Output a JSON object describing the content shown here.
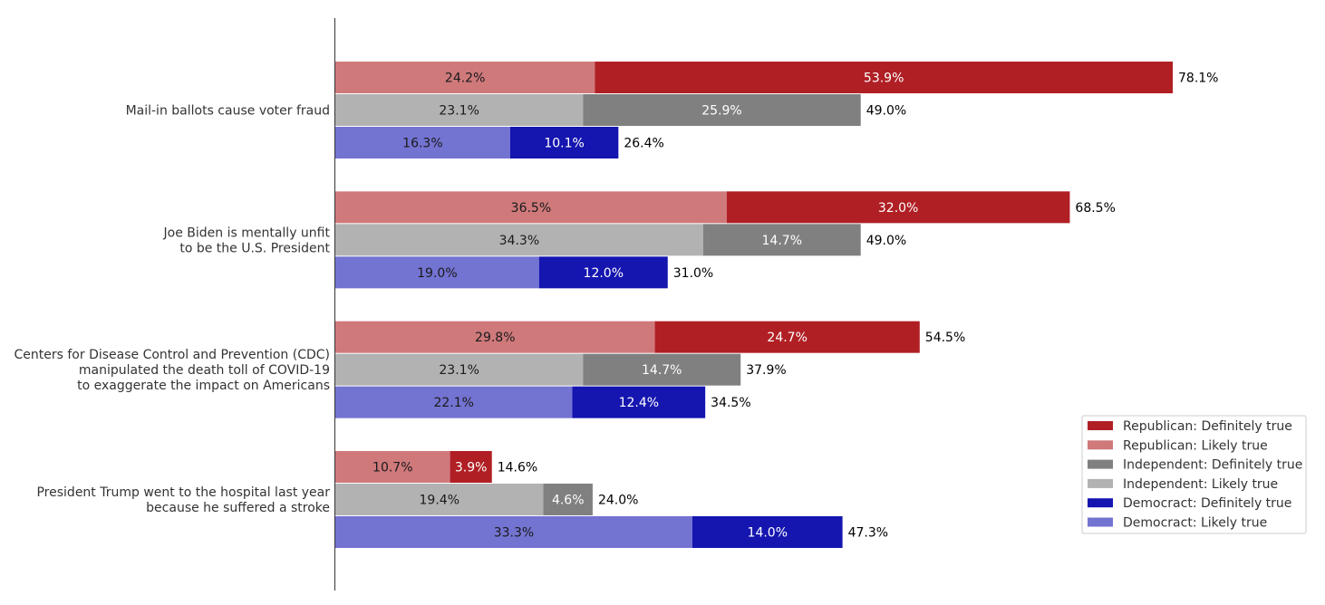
{
  "chart_data": {
    "type": "bar",
    "orientation": "horizontal",
    "stacked": true,
    "xlim": [
      0,
      80
    ],
    "grid": false,
    "legend_position": "bottom-right",
    "categories": [
      "Mail-in ballots cause voter fraud",
      "Joe Biden is mentally unfit\nto be the U.S. President",
      "Centers for Disease Control and Prevention (CDC)\nmanipulated the death toll of COVID-19\nto exaggerate the impact on Americans",
      "President Trump went to the hospital last year\nbecause he suffered a stroke"
    ],
    "groups": [
      {
        "name": "Republican",
        "likely_color": "#cf797b",
        "definitely_color": "#b01f24",
        "likely": [
          24.2,
          36.5,
          29.8,
          10.7
        ],
        "definitely": [
          53.9,
          32.0,
          24.7,
          3.9
        ],
        "likely_labels": [
          "24.2%",
          "36.5%",
          "29.8%",
          "10.7%"
        ],
        "definitely_labels": [
          "53.9%",
          "32.0%",
          "24.7%",
          "3.9%"
        ],
        "total_labels": [
          "78.1%",
          "68.5%",
          "54.5%",
          "14.6%"
        ]
      },
      {
        "name": "Independent",
        "likely_color": "#b2b2b2",
        "definitely_color": "#808080",
        "likely": [
          23.1,
          34.3,
          23.1,
          19.4
        ],
        "definitely": [
          25.9,
          14.7,
          14.7,
          4.6
        ],
        "likely_labels": [
          "23.1%",
          "34.3%",
          "23.1%",
          "19.4%"
        ],
        "definitely_labels": [
          "25.9%",
          "14.7%",
          "14.7%",
          "4.6%"
        ],
        "total_labels": [
          "49.0%",
          "49.0%",
          "37.9%",
          "24.0%"
        ]
      },
      {
        "name": "Democract",
        "likely_color": "#7373d2",
        "definitely_color": "#1515b0",
        "likely": [
          16.3,
          19.0,
          22.1,
          33.3
        ],
        "definitely": [
          10.1,
          12.0,
          12.4,
          14.0
        ],
        "likely_labels": [
          "16.3%",
          "19.0%",
          "22.1%",
          "33.3%"
        ],
        "definitely_labels": [
          "10.1%",
          "12.0%",
          "12.4%",
          "14.0%"
        ],
        "total_labels": [
          "26.4%",
          "31.0%",
          "34.5%",
          "47.3%"
        ]
      }
    ],
    "legend": [
      {
        "label": "Republican: Definitely true",
        "color": "#b01f24"
      },
      {
        "label": "Republican: Likely true",
        "color": "#cf797b"
      },
      {
        "label": "Independent: Definitely true",
        "color": "#808080"
      },
      {
        "label": "Independent: Likely true",
        "color": "#b2b2b2"
      },
      {
        "label": "Democract: Definitely true",
        "color": "#1515b0"
      },
      {
        "label": "Democract: Likely true",
        "color": "#7373d2"
      }
    ]
  }
}
